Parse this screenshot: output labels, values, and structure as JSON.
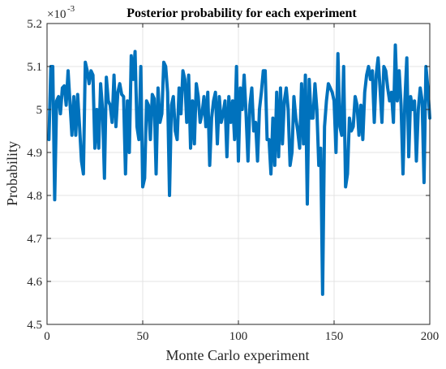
{
  "chart_data": {
    "type": "line",
    "title": "Posterior probability for each experiment",
    "xlabel": "Monte Carlo experiment",
    "ylabel": "Probability",
    "y_exponent_base": "×10",
    "y_exponent_power": "-3",
    "xlim": [
      0,
      200
    ],
    "ylim": [
      4.5,
      5.2
    ],
    "xticks": [
      0,
      50,
      100,
      150,
      200
    ],
    "xtick_labels": [
      "0",
      "50",
      "100",
      "150",
      "200"
    ],
    "yticks": [
      4.5,
      4.6,
      4.7,
      4.8,
      4.9,
      5.0,
      5.1,
      5.2
    ],
    "ytick_labels": [
      "4.5",
      "4.6",
      "4.7",
      "4.8",
      "4.9",
      "5",
      "5.1",
      "5.2"
    ],
    "grid": true,
    "color": "#0072BD",
    "series": [
      {
        "x": [
          1,
          2,
          3,
          4,
          5,
          6,
          7,
          8,
          9,
          10,
          11,
          12,
          13,
          14,
          15,
          16,
          17,
          18,
          19,
          20,
          21,
          22,
          23,
          24,
          25,
          26,
          27,
          28,
          29,
          30,
          31,
          32,
          33,
          34,
          35,
          36,
          37,
          38,
          39,
          40,
          41,
          42,
          43,
          44,
          45,
          46,
          47,
          48,
          49,
          50,
          51,
          52,
          53,
          54,
          55,
          56,
          57,
          58,
          59,
          60,
          61,
          62,
          63,
          64,
          65,
          66,
          67,
          68,
          69,
          70,
          71,
          72,
          73,
          74,
          75,
          76,
          77,
          78,
          79,
          80,
          81,
          82,
          83,
          84,
          85,
          86,
          87,
          88,
          89,
          90,
          91,
          92,
          93,
          94,
          95,
          96,
          97,
          98,
          99,
          100,
          101,
          102,
          103,
          104,
          105,
          106,
          107,
          108,
          109,
          110,
          111,
          112,
          113,
          114,
          115,
          116,
          117,
          118,
          119,
          120,
          121,
          122,
          123,
          124,
          125,
          126,
          127,
          128,
          129,
          130,
          131,
          132,
          133,
          134,
          135,
          136,
          137,
          138,
          139,
          140,
          141,
          142,
          143,
          144,
          145,
          146,
          147,
          148,
          149,
          150,
          151,
          152,
          153,
          154,
          155,
          156,
          157,
          158,
          159,
          160,
          161,
          162,
          163,
          164,
          165,
          166,
          167,
          168,
          169,
          170,
          171,
          172,
          173,
          174,
          175,
          176,
          177,
          178,
          179,
          180,
          181,
          182,
          183,
          184,
          185,
          186,
          187,
          188,
          189,
          190,
          191,
          192,
          193,
          194,
          195,
          196,
          197,
          198,
          199,
          200
        ],
        "values": [
          4.93,
          5.1,
          5.1,
          4.79,
          5.02,
          5.03,
          4.99,
          5.05,
          5.055,
          5.01,
          5.09,
          5.015,
          4.94,
          5.03,
          4.94,
          5.035,
          4.96,
          4.88,
          4.85,
          5.11,
          5.09,
          5.06,
          5.09,
          5.08,
          4.91,
          5.0,
          4.91,
          5.06,
          5.0,
          4.84,
          5.075,
          5.02,
          5.01,
          4.97,
          5.08,
          4.96,
          5.04,
          5.06,
          5.035,
          5.03,
          4.85,
          5.02,
          4.9,
          5.125,
          5.07,
          5.135,
          4.96,
          4.93,
          5.1,
          4.82,
          4.84,
          5.02,
          5.01,
          4.93,
          5.035,
          5.025,
          4.85,
          5.05,
          4.97,
          4.99,
          5.11,
          5.1,
          5.04,
          4.8,
          5.01,
          5.03,
          4.95,
          4.93,
          5.05,
          4.99,
          5.09,
          5.07,
          4.97,
          5.08,
          4.91,
          5.02,
          4.92,
          5.06,
          5.03,
          4.97,
          4.99,
          5.03,
          4.96,
          5.04,
          4.87,
          4.98,
          5.02,
          5.04,
          4.92,
          5.03,
          4.97,
          4.99,
          5.02,
          4.89,
          5.03,
          4.97,
          5.02,
          4.93,
          5.1,
          4.88,
          5.05,
          5.0,
          5.08,
          4.99,
          4.88,
          5.01,
          5.05,
          4.95,
          4.97,
          4.88,
          5.0,
          5.04,
          5.09,
          5.09,
          4.93,
          4.93,
          4.85,
          4.98,
          4.87,
          5.04,
          4.89,
          5.05,
          4.92,
          5.02,
          5.05,
          5.0,
          4.87,
          4.9,
          5.03,
          4.98,
          4.95,
          4.91,
          5.06,
          4.92,
          5.08,
          4.78,
          5.07,
          4.98,
          4.98,
          5.06,
          5.0,
          4.87,
          4.91,
          4.57,
          4.96,
          5.02,
          5.06,
          5.05,
          5.04,
          5.02,
          4.9,
          5.13,
          4.96,
          4.94,
          5.1,
          4.82,
          4.85,
          4.98,
          4.95,
          4.96,
          5.03,
          5.01,
          4.94,
          5.01,
          4.93,
          5.04,
          5.08,
          5.1,
          5.07,
          5.09,
          4.97,
          5.08,
          5.12,
          5.05,
          4.97,
          5.1,
          5.09,
          5.05,
          5.02,
          5.04,
          4.97,
          5.15,
          5.02,
          5.09,
          5.01,
          4.85,
          5.02,
          5.12,
          4.89,
          5.03,
          5.0,
          5.02,
          4.88,
          5.0,
          5.05,
          5.02,
          4.83,
          5.1,
          5.05,
          4.98
        ]
      }
    ]
  }
}
